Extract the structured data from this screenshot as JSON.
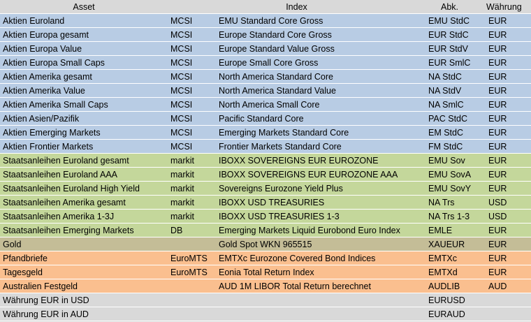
{
  "header": {
    "asset": "Asset",
    "index": "Index",
    "abbr": "Abk.",
    "currency": "Währung"
  },
  "colors": {
    "equity": "#b8cce4",
    "bonds": "#c4d79b",
    "gold": "#c4bd97",
    "other": "#fabf8f",
    "fx": "#d9d9d9"
  },
  "rows": [
    {
      "group": "equity",
      "asset": "Aktien Euroland",
      "provider": "MCSI",
      "index": "EMU Standard Core Gross",
      "abbr": "EMU StdC",
      "currency": "EUR"
    },
    {
      "group": "equity",
      "asset": "Aktien Europa gesamt",
      "provider": "MCSI",
      "index": "Europe Standard Core Gross",
      "abbr": "EUR StdC",
      "currency": "EUR"
    },
    {
      "group": "equity",
      "asset": "Aktien Europa Value",
      "provider": "MCSI",
      "index": "Europe Standard Value Gross",
      "abbr": "EUR StdV",
      "currency": "EUR"
    },
    {
      "group": "equity",
      "asset": "Aktien Europa Small Caps",
      "provider": "MCSI",
      "index": "Europe Small Core Gross",
      "abbr": "EUR SmlC",
      "currency": "EUR"
    },
    {
      "group": "equity",
      "asset": "Aktien Amerika gesamt",
      "provider": "MCSI",
      "index": "North America Standard Core",
      "abbr": "NA StdC",
      "currency": "EUR"
    },
    {
      "group": "equity",
      "asset": "Aktien Amerika Value",
      "provider": "MCSI",
      "index": "North America Standard Value",
      "abbr": "NA StdV",
      "currency": "EUR"
    },
    {
      "group": "equity",
      "asset": "Aktien Amerika Small Caps",
      "provider": "MCSI",
      "index": "North America Small Core",
      "abbr": "NA SmlC",
      "currency": "EUR"
    },
    {
      "group": "equity",
      "asset": "Aktien Asien/Pazifik",
      "provider": "MCSI",
      "index": "Pacific Standard Core",
      "abbr": "PAC StdC",
      "currency": "EUR"
    },
    {
      "group": "equity",
      "asset": "Aktien Emerging Markets",
      "provider": "MCSI",
      "index": "Emerging Markets Standard Core",
      "abbr": "EM StdC",
      "currency": "EUR"
    },
    {
      "group": "equity",
      "asset": "Aktien Frontier Markets",
      "provider": "MCSI",
      "index": "Frontier Markets Standard Core",
      "abbr": "FM StdC",
      "currency": "EUR"
    },
    {
      "group": "bonds",
      "asset": "Staatsanleihen Euroland gesamt",
      "provider": "markit",
      "index": "IBOXX SOVEREIGNS EUR EUROZONE",
      "abbr": "EMU Sov",
      "currency": "EUR"
    },
    {
      "group": "bonds",
      "asset": "Staatsanleihen Euroland AAA",
      "provider": "markit",
      "index": "IBOXX SOVEREIGNS EUR EUROZONE AAA",
      "abbr": "EMU SovA",
      "currency": "EUR"
    },
    {
      "group": "bonds",
      "asset": "Staatsanleihen Euroland High Yield",
      "provider": "markit",
      "index": "Sovereigns Eurozone Yield Plus",
      "abbr": "EMU SovY",
      "currency": "EUR"
    },
    {
      "group": "bonds",
      "asset": "Staatsanleihen Amerika gesamt",
      "provider": "markit",
      "index": "IBOXX USD TREASURIES",
      "abbr": "NA Trs",
      "currency": "USD"
    },
    {
      "group": "bonds",
      "asset": "Staatsanleihen Amerika 1-3J",
      "provider": "markit",
      "index": "IBOXX USD TREASURIES 1-3",
      "abbr": "NA Trs 1-3",
      "currency": "USD"
    },
    {
      "group": "bonds",
      "asset": "Staatsanleihen Emerging Markets",
      "provider": "DB",
      "index": "Emerging Markets Liquid Eurobond Euro Index",
      "abbr": "EMLE",
      "currency": "EUR"
    },
    {
      "group": "gold",
      "asset": "Gold",
      "provider": "",
      "index": "Gold Spot WKN 965515",
      "abbr": "XAUEUR",
      "currency": "EUR"
    },
    {
      "group": "other",
      "asset": "Pfandbriefe",
      "provider": "EuroMTS",
      "index": "EMTXc Eurozone Covered Bond Indices",
      "abbr": "EMTXc",
      "currency": "EUR"
    },
    {
      "group": "other",
      "asset": "Tagesgeld",
      "provider": "EuroMTS",
      "index": "Eonia Total Return Index",
      "abbr": "EMTXd",
      "currency": "EUR"
    },
    {
      "group": "other",
      "asset": "Australien Festgeld",
      "provider": "",
      "index": "AUD 1M LIBOR Total Return berechnet",
      "abbr": "AUDLIB",
      "currency": "AUD"
    },
    {
      "group": "fx",
      "asset": "Währung EUR in USD",
      "provider": "",
      "index": "",
      "abbr": "EURUSD",
      "currency": ""
    },
    {
      "group": "fx",
      "asset": "Währung EUR in AUD",
      "provider": "",
      "index": "",
      "abbr": "EURAUD",
      "currency": ""
    }
  ]
}
